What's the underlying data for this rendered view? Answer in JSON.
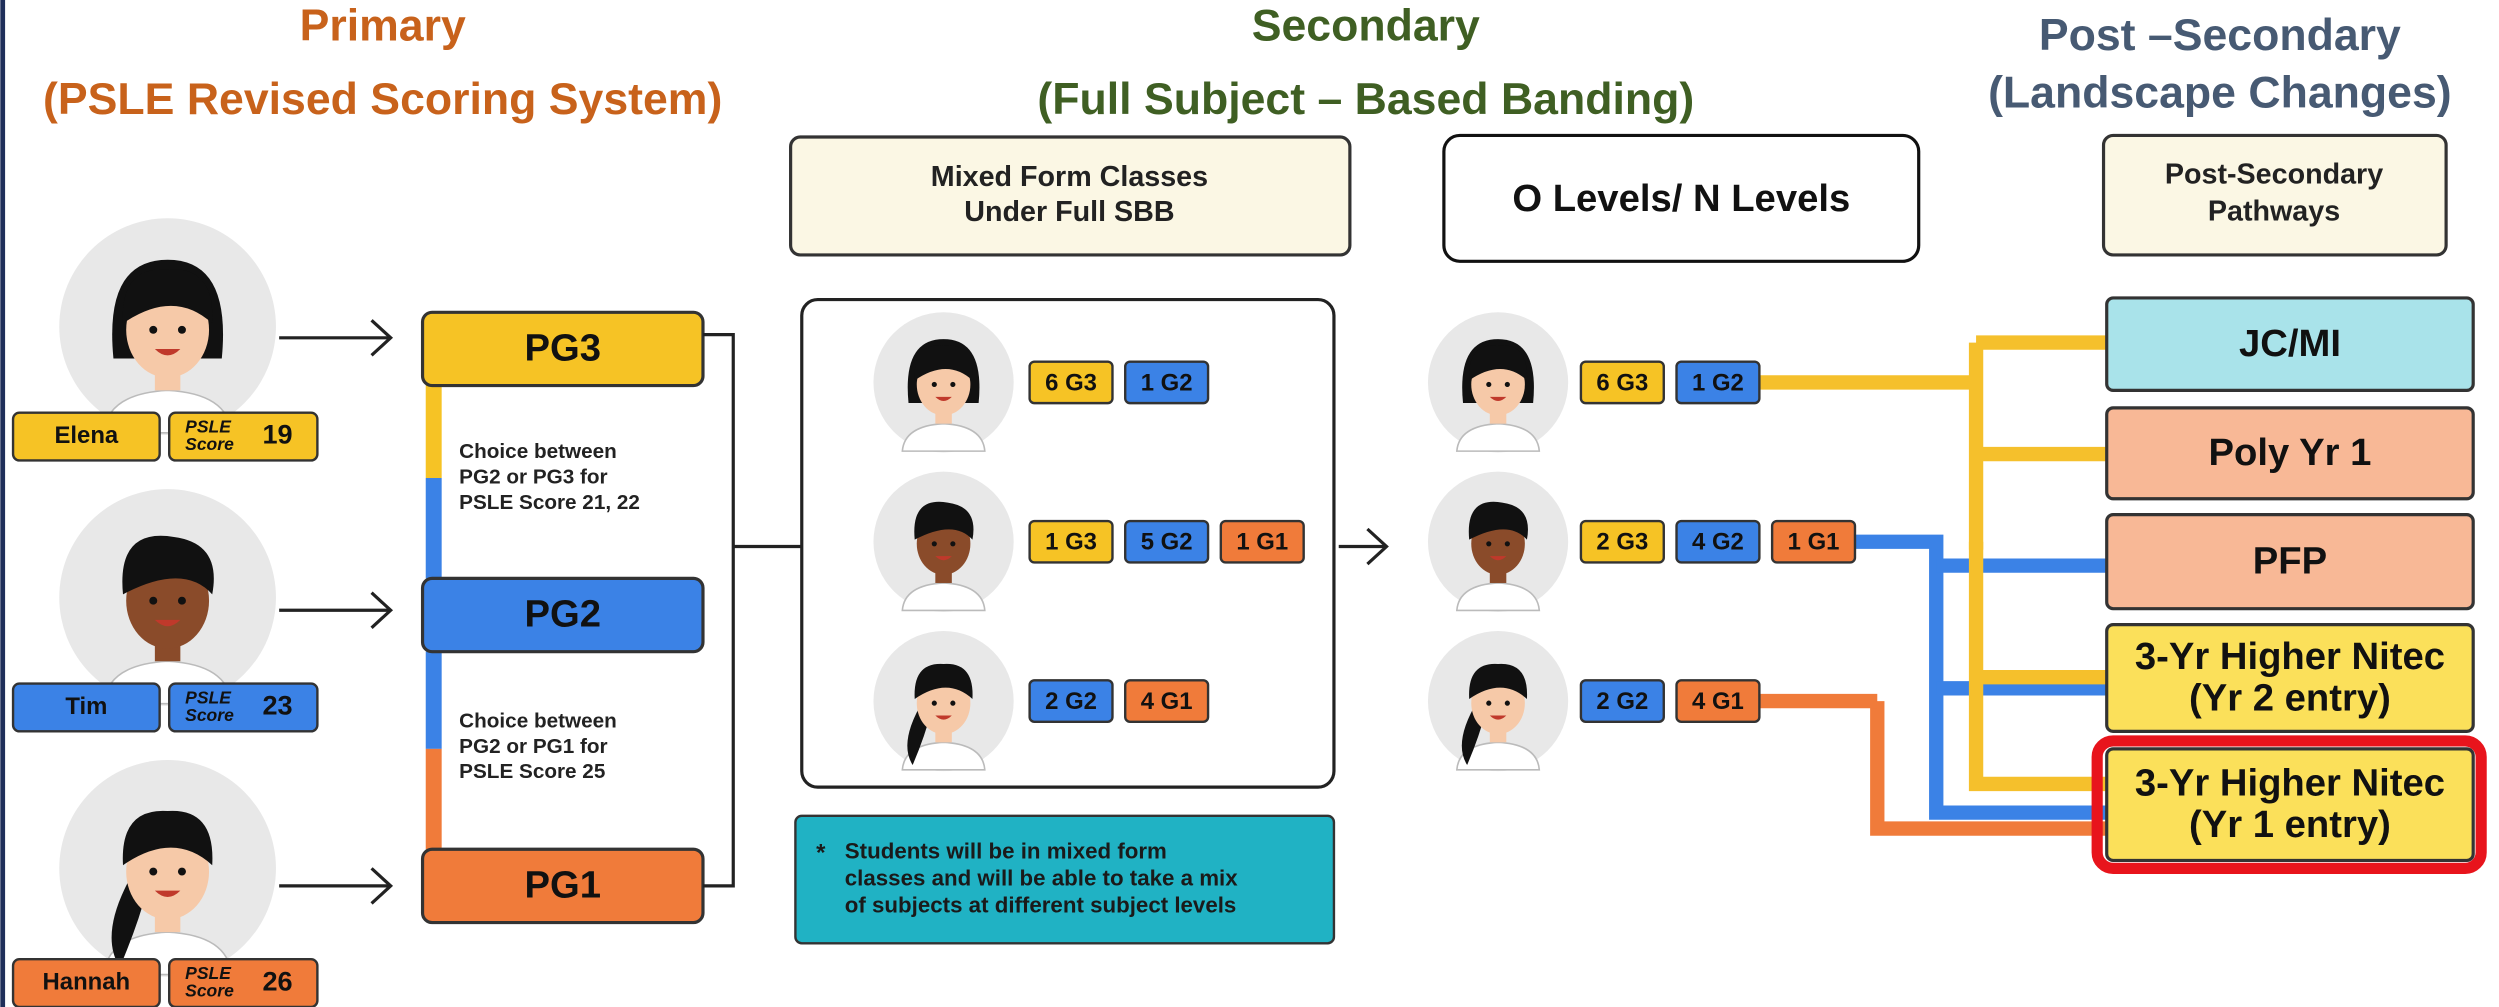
{
  "columns": [
    {
      "title": "Primary",
      "subtitle": "(PSLE Revised Scoring System)",
      "color": "#c8621b"
    },
    {
      "title": "Secondary",
      "subtitle": "(Full Subject – Based Banding)",
      "color": "#3f5f23"
    },
    {
      "title": "Post –Secondary",
      "subtitle": "(Landscape Changes)",
      "color": "#475a73"
    }
  ],
  "primary": {
    "students": [
      {
        "name": "Elena",
        "score_label": [
          "PSLE",
          "Score"
        ],
        "score": 19,
        "color": "#f6c325"
      },
      {
        "name": "Tim",
        "score_label": [
          "PSLE",
          "Score"
        ],
        "score": 23,
        "color": "#3b82e6"
      },
      {
        "name": "Hannah",
        "score_label": [
          "PSLE",
          "Score"
        ],
        "score": 26,
        "color": "#f07b3a"
      }
    ],
    "groups": [
      {
        "label": "PG3",
        "color": "#f6c325"
      },
      {
        "label": "PG2",
        "color": "#3b82e6"
      },
      {
        "label": "PG1",
        "color": "#f07b3a"
      }
    ],
    "notes": [
      [
        "Choice between",
        "PG2 or PG3 for",
        "PSLE Score 21, 22"
      ],
      [
        "Choice between",
        "PG2 or PG1 for",
        "PSLE Score 25"
      ]
    ]
  },
  "secondary": {
    "header": [
      "Mixed Form Classes",
      "Under Full SBB"
    ],
    "mixed": [
      [
        {
          "label": "6 G3",
          "color": "#f6c325"
        },
        {
          "label": "1 G2",
          "color": "#3b82e6"
        }
      ],
      [
        {
          "label": "1 G3",
          "color": "#f6c325"
        },
        {
          "label": "5 G2",
          "color": "#3b82e6"
        },
        {
          "label": "1 G1",
          "color": "#f07b3a"
        }
      ],
      [
        {
          "label": "2 G2",
          "color": "#3b82e6"
        },
        {
          "label": "4 G1",
          "color": "#f07b3a"
        }
      ]
    ],
    "note_marker": "*",
    "note": [
      "Students will be in mixed form",
      "classes and will be able to take a mix",
      "of subjects at different subject levels"
    ],
    "outcome_header": "O Levels/ N Levels",
    "outcomes": [
      [
        {
          "label": "6 G3",
          "color": "#f6c325"
        },
        {
          "label": "1 G2",
          "color": "#3b82e6"
        }
      ],
      [
        {
          "label": "2 G3",
          "color": "#f6c325"
        },
        {
          "label": "4 G2",
          "color": "#3b82e6"
        },
        {
          "label": "1 G1",
          "color": "#f07b3a"
        }
      ],
      [
        {
          "label": "2 G2",
          "color": "#3b82e6"
        },
        {
          "label": "4 G1",
          "color": "#f07b3a"
        }
      ]
    ]
  },
  "post_secondary": {
    "header": [
      "Post-Secondary",
      "Pathways"
    ],
    "pathways": [
      {
        "lines": [
          "JC/MI"
        ],
        "color": "#a9e3ea"
      },
      {
        "lines": [
          "Poly Yr 1"
        ],
        "color": "#f8b896"
      },
      {
        "lines": [
          "PFP"
        ],
        "color": "#f8b896"
      },
      {
        "lines": [
          "3-Yr Higher Nitec",
          "(Yr 2 entry)"
        ],
        "color": "#fbe05a"
      },
      {
        "lines": [
          "3-Yr Higher Nitec",
          "(Yr 1 entry)"
        ],
        "color": "#fbe05a"
      }
    ]
  }
}
